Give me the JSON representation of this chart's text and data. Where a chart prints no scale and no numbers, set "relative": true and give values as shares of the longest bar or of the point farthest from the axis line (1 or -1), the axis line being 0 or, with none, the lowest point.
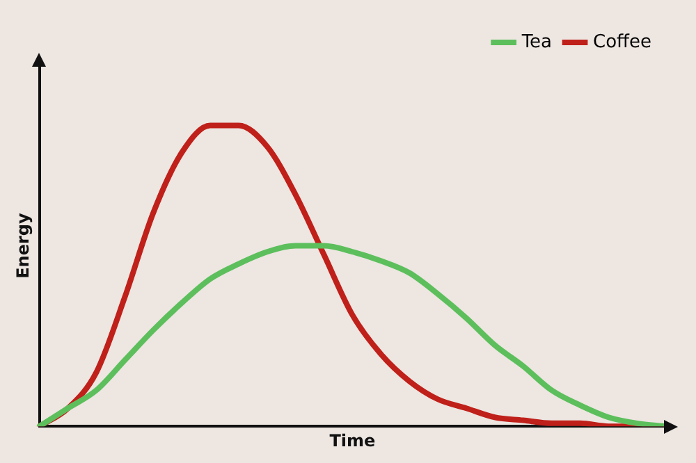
{
  "chart_data": {
    "type": "line",
    "relative": true,
    "xlabel": "Time",
    "ylabel": "Energy",
    "legend": "top right",
    "grid": false,
    "marker": "none",
    "line_style": "solid",
    "categories": [
      null,
      null,
      null,
      null,
      null,
      null,
      null,
      null,
      null,
      null,
      null,
      null,
      null,
      null,
      null,
      null,
      null,
      null,
      null,
      null,
      null,
      null,
      null
    ],
    "series": [
      {
        "name": "Tea",
        "color": "#5cbf5c",
        "values": [
          0,
          0.06,
          0.12,
          0.22,
          0.32,
          0.41,
          0.49,
          0.54,
          0.58,
          0.6,
          0.6,
          0.58,
          0.55,
          0.51,
          0.44,
          0.36,
          0.27,
          0.2,
          0.12,
          0.07,
          0.03,
          0.01,
          0
        ]
      },
      {
        "name": "Coffee",
        "color": "#c0201a",
        "values": [
          0,
          0.06,
          0.18,
          0.43,
          0.71,
          0.91,
          1,
          1,
          0.93,
          0.77,
          0.57,
          0.37,
          0.24,
          0.15,
          0.09,
          0.06,
          0.03,
          0.02,
          0.01,
          0.01,
          0,
          0,
          0
        ]
      }
    ]
  }
}
